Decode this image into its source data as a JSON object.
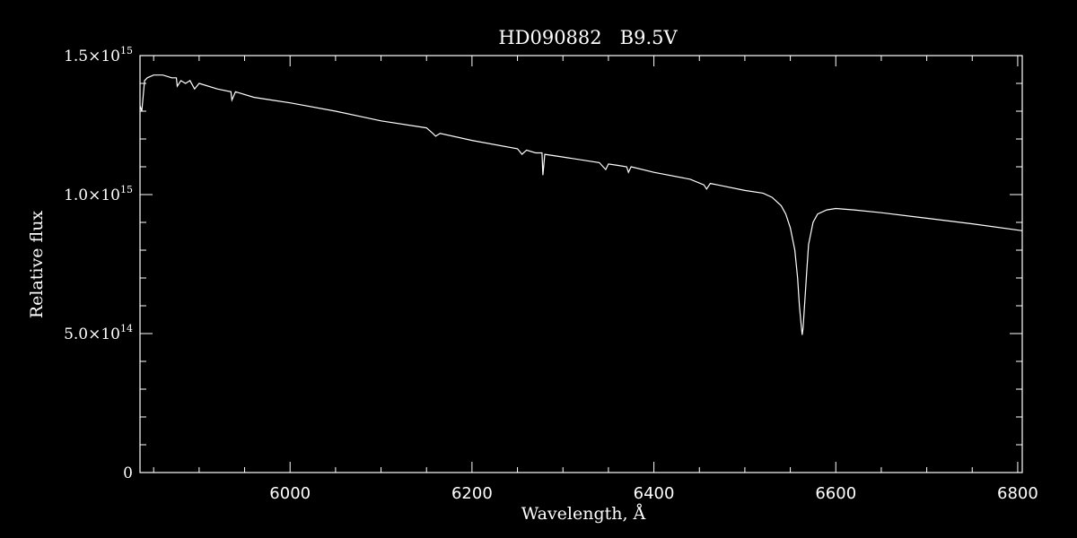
{
  "chart_data": {
    "type": "line",
    "title": "HD090882   B9.5V",
    "xlabel": "Wavelength, Å",
    "ylabel": "Relative flux",
    "xlim": [
      5835,
      6805
    ],
    "ylim": [
      0,
      1500000000000000.0
    ],
    "x_ticks": [
      6000,
      6200,
      6400,
      6600,
      6800
    ],
    "x_tick_labels": [
      "6000",
      "6200",
      "6400",
      "6600",
      "6800"
    ],
    "y_ticks": [
      {
        "value": 1500000000000000.0,
        "mantissa": "1.5×10",
        "exponent": "15"
      },
      {
        "value": 1000000000000000.0,
        "mantissa": "1.0×10",
        "exponent": "15"
      },
      {
        "value": 500000000000000.0,
        "mantissa": "5.0×10",
        "exponent": "14"
      },
      {
        "value": 0,
        "mantissa": "0",
        "exponent": ""
      }
    ],
    "grid": false,
    "colors": {
      "background": "#000000",
      "foreground": "#ffffff"
    },
    "series": [
      {
        "x": [
          5835,
          5837,
          5840,
          5843,
          5850,
          5860,
          5870,
          5875,
          5876,
          5880,
          5885,
          5890,
          5895,
          5900,
          5920,
          5935,
          5936,
          5940,
          5960,
          5980,
          6000,
          6050,
          6100,
          6150,
          6157,
          6160,
          6165,
          6200,
          6250,
          6255,
          6260,
          6270,
          6277,
          6278,
          6280,
          6300,
          6340,
          6347,
          6350,
          6360,
          6370,
          6372,
          6375,
          6400,
          6440,
          6455,
          6458,
          6462,
          6470,
          6500,
          6520,
          6530,
          6540,
          6545,
          6550,
          6555,
          6558,
          6560,
          6562,
          6563,
          6564,
          6566,
          6568,
          6570,
          6575,
          6580,
          6590,
          6600,
          6620,
          6650,
          6700,
          6750,
          6805
        ],
        "y": [
          1320000000000000.0,
          1300000000000000.0,
          1410000000000000.0,
          1420000000000000.0,
          1430000000000000.0,
          1430000000000000.0,
          1420000000000000.0,
          1420000000000000.0,
          1390000000000000.0,
          1410000000000000.0,
          1400000000000000.0,
          1410000000000000.0,
          1380000000000000.0,
          1400000000000000.0,
          1380000000000000.0,
          1370000000000000.0,
          1340000000000000.0,
          1370000000000000.0,
          1350000000000000.0,
          1340000000000000.0,
          1330000000000000.0,
          1300000000000000.0,
          1265000000000000.0,
          1240000000000000.0,
          1220000000000000.0,
          1210000000000000.0,
          1220000000000000.0,
          1195000000000000.0,
          1165000000000000.0,
          1145000000000000.0,
          1160000000000000.0,
          1150000000000000.0,
          1150000000000000.0,
          1070000000000000.0,
          1145000000000000.0,
          1135000000000000.0,
          1115000000000000.0,
          1090000000000000.0,
          1110000000000000.0,
          1105000000000000.0,
          1100000000000000.0,
          1080000000000000.0,
          1100000000000000.0,
          1080000000000000.0,
          1055000000000000.0,
          1035000000000000.0,
          1020000000000000.0,
          1040000000000000.0,
          1035000000000000.0,
          1015000000000000.0,
          1005000000000000.0,
          990000000000000.0,
          960000000000000.0,
          930000000000000.0,
          880000000000000.0,
          800000000000000.0,
          700000000000000.0,
          600000000000000.0,
          530000000000000.0,
          495000000000000.0,
          520000000000000.0,
          620000000000000.0,
          720000000000000.0,
          820000000000000.0,
          900000000000000.0,
          930000000000000.0,
          945000000000000.0,
          950000000000000.0,
          945000000000000.0,
          935000000000000.0,
          915000000000000.0,
          895000000000000.0,
          870000000000000.0
        ]
      }
    ]
  }
}
